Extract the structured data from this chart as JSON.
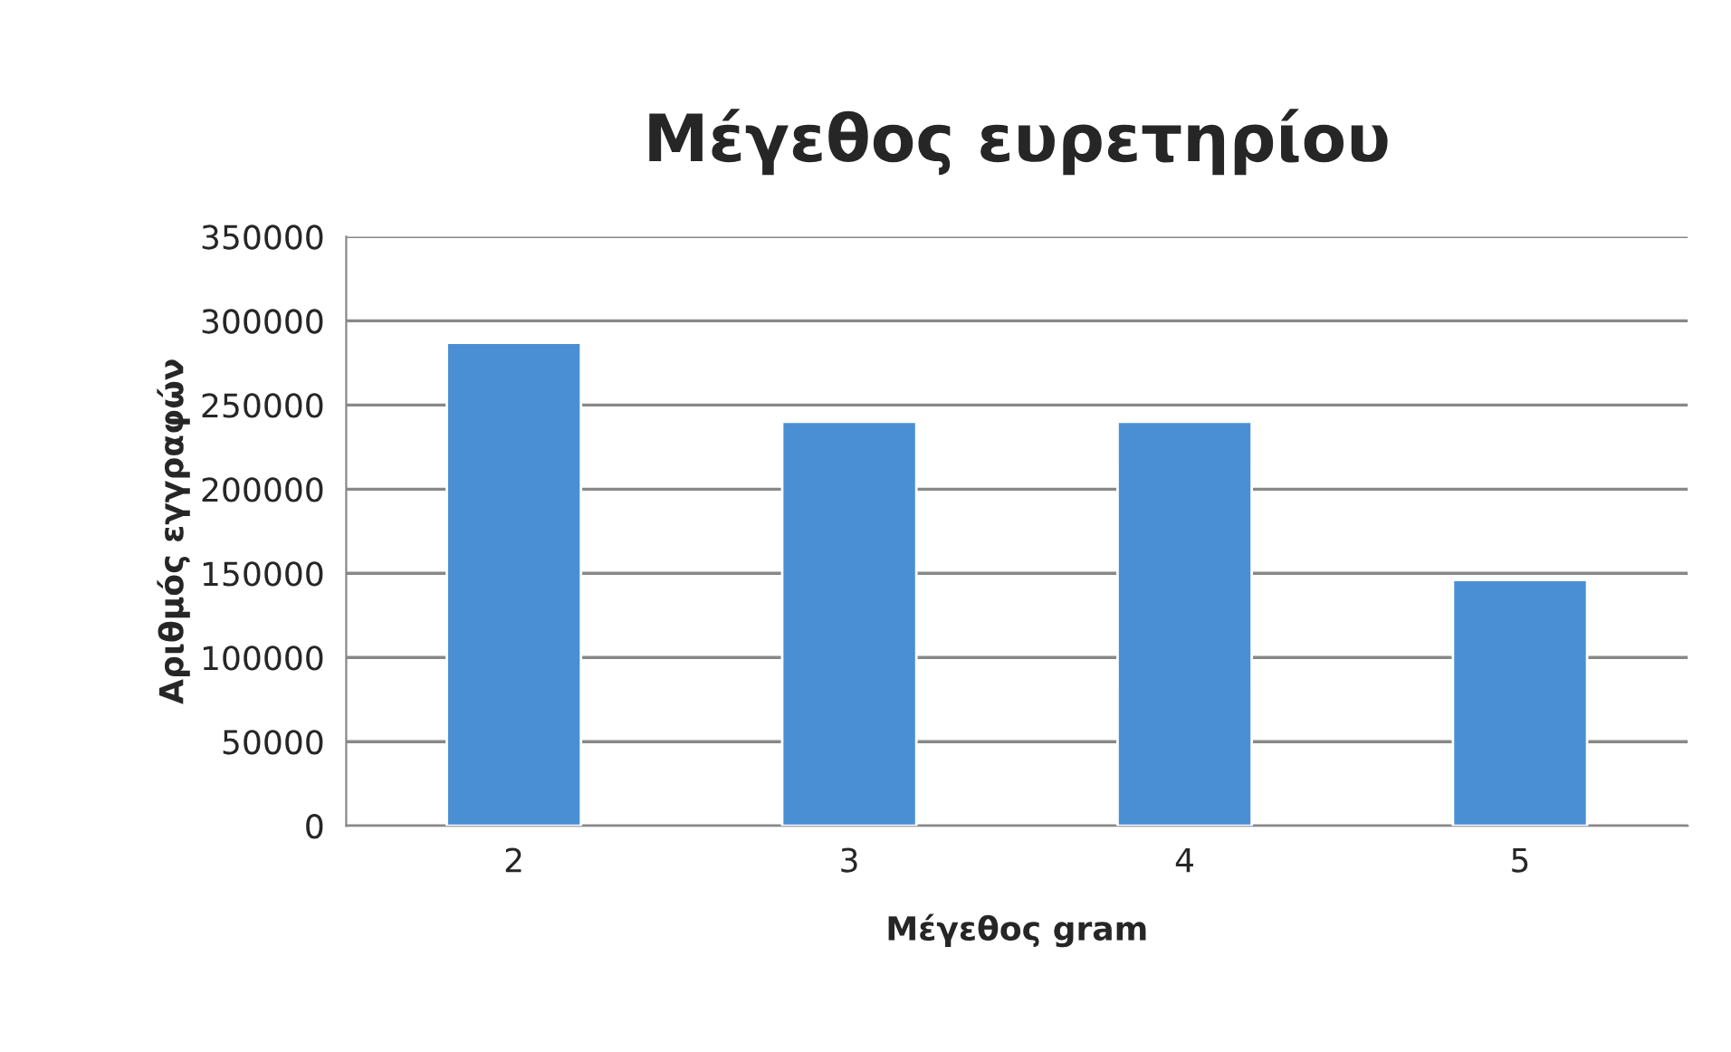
{
  "chart_data": {
    "type": "bar",
    "title": "Μέγεθος ευρετηρίου",
    "xlabel": "Μέγεθος gram",
    "ylabel": "Αριθμός εγγραφών",
    "categories": [
      "2",
      "3",
      "4",
      "5"
    ],
    "values": [
      287000,
      240000,
      240000,
      146000
    ],
    "color": "#4a8fd4",
    "ylim": [
      0,
      350000
    ],
    "yticks": [
      0,
      50000,
      100000,
      150000,
      200000,
      250000,
      300000,
      350000
    ],
    "grid": "y"
  }
}
